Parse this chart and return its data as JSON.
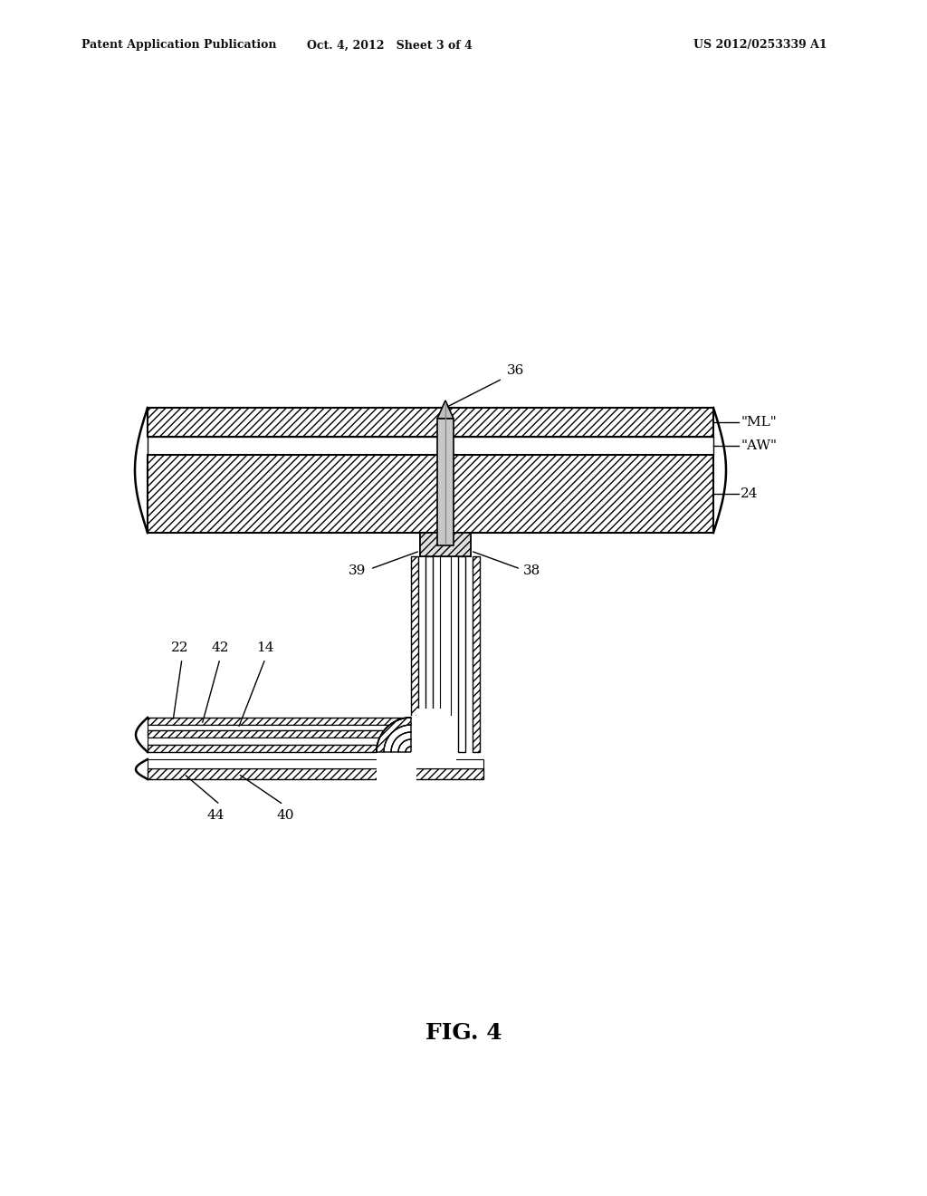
{
  "title": "FIG. 4",
  "header_left": "Patent Application Publication",
  "header_mid": "Oct. 4, 2012   Sheet 3 of 4",
  "header_right": "US 2012/0253339 A1",
  "bg_color": "#ffffff",
  "line_color": "#000000",
  "label_36": "36",
  "label_ML": "\"ML\"",
  "label_AW": "\"AW\"",
  "label_24": "24",
  "label_39": "39",
  "label_38": "38",
  "label_22": "22",
  "label_42": "42",
  "label_14": "14",
  "label_44": "44",
  "label_40": "40"
}
